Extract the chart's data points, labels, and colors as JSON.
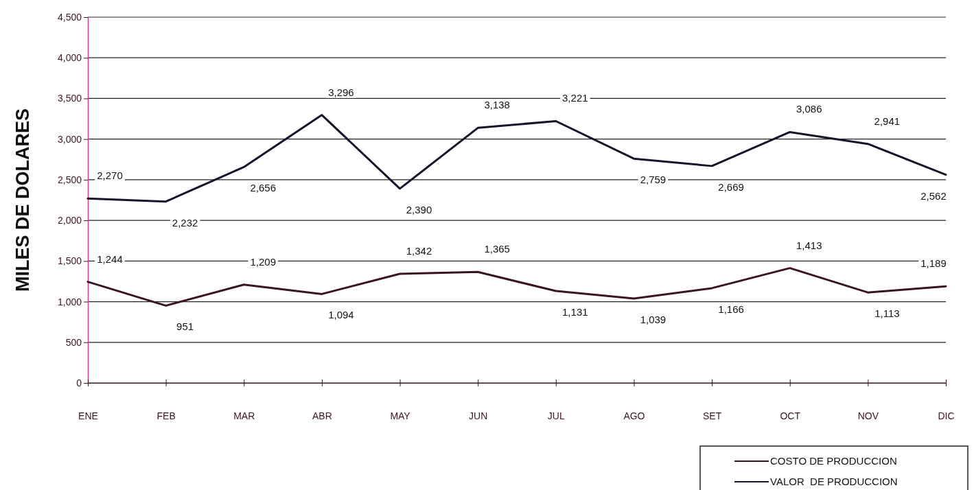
{
  "chart_data": {
    "type": "line",
    "ylabel": "MILES DE DOLARES",
    "categories": [
      "ENE",
      "FEB",
      "MAR",
      "ABR",
      "MAY",
      "JUN",
      "JUL",
      "AGO",
      "SET",
      "OCT",
      "NOV",
      "DIC"
    ],
    "series": [
      {
        "name": "COSTO DE PRODUCCION",
        "color": "#3a1424",
        "values": [
          1244,
          951,
          1209,
          1094,
          1342,
          1365,
          1131,
          1039,
          1166,
          1413,
          1113,
          1189
        ],
        "value_labels": [
          "1,244",
          "951",
          "1,209",
          "1,094",
          "1,342",
          "1,365",
          "1,131",
          "1,039",
          "1,166",
          "1,413",
          "1,113",
          "1,189"
        ]
      },
      {
        "name": "VALOR  DE PRODUCCION",
        "color": "#14142a",
        "values": [
          2270,
          2232,
          2656,
          3296,
          2390,
          3138,
          3221,
          2759,
          2669,
          3086,
          2941,
          2562
        ],
        "value_labels": [
          "2,270",
          "2,232",
          "2,656",
          "3,296",
          "2,390",
          "3,138",
          "3,221",
          "2,759",
          "2,669",
          "3,086",
          "2,941",
          "2,562"
        ]
      }
    ],
    "ylim": [
      0,
      4500
    ],
    "yticks": [
      0,
      500,
      {
        "value": 1000,
        "label": "1,000"
      },
      {
        "value": 1500,
        "label": "1,500"
      },
      {
        "value": 2000,
        "label": "2,000"
      },
      {
        "value": 2500,
        "label": "2,500"
      },
      {
        "value": 3000,
        "label": "3,000"
      },
      {
        "value": 3500,
        "label": "3,500"
      },
      {
        "value": 4000,
        "label": "4,000"
      },
      {
        "value": 4500,
        "label": "4,500"
      }
    ],
    "grid": "y",
    "legend": "bottom right",
    "marker": "none",
    "line_style": "solid"
  }
}
